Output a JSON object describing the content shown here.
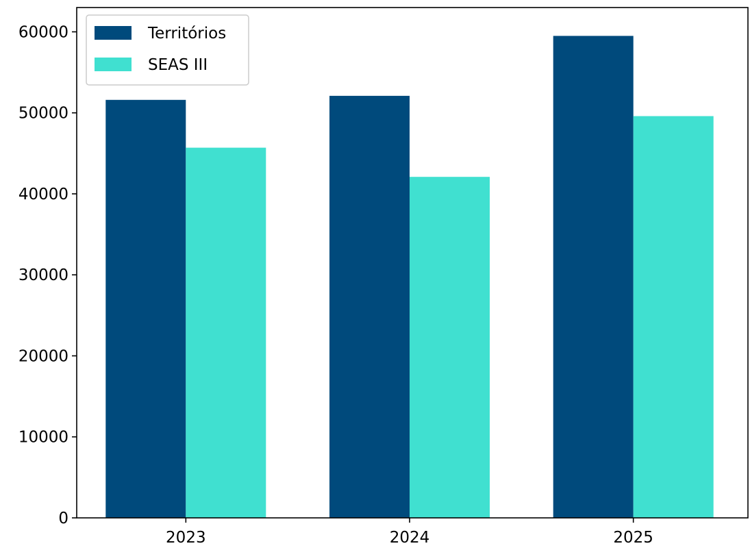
{
  "chart_data": {
    "type": "bar",
    "categories": [
      "2023",
      "2024",
      "2025"
    ],
    "series": [
      {
        "name": "Territórios",
        "color": "#004a7c",
        "values": [
          51600,
          52100,
          59500
        ]
      },
      {
        "name": "SEAS III",
        "color": "#40e0d0",
        "values": [
          45700,
          42100,
          49600
        ]
      }
    ],
    "ylim": [
      0,
      63000
    ],
    "yticks": [
      "0",
      "10000",
      "20000",
      "30000",
      "40000",
      "50000",
      "60000"
    ],
    "legend_position": "top-left",
    "grid": false
  }
}
